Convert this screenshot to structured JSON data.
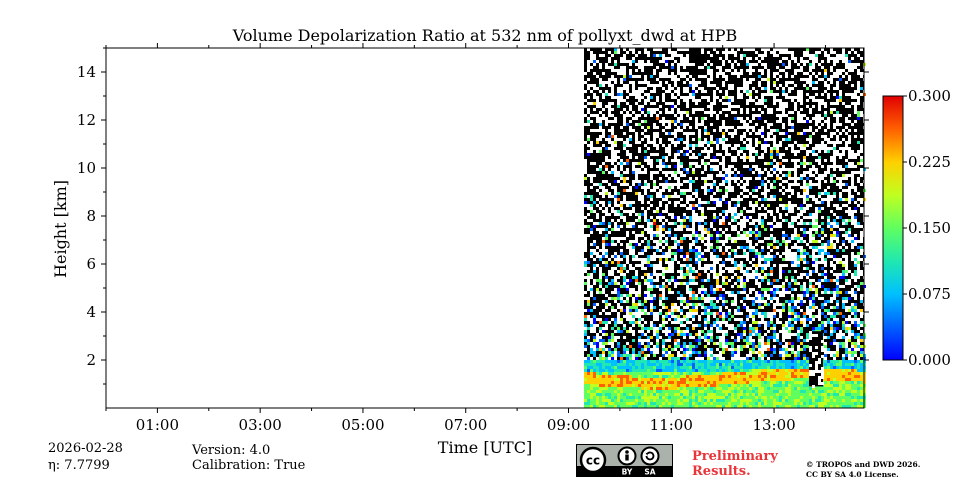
{
  "chart_data": {
    "type": "heatmap",
    "title": "Volume Depolarization Ratio at 532 nm of pollyxt_dwd at HPB",
    "xlabel": "Time [UTC]",
    "ylabel": "Height [km]",
    "x_ticks": [
      "01:00",
      "03:00",
      "05:00",
      "07:00",
      "09:00",
      "11:00",
      "13:00"
    ],
    "x_tick_hours": [
      1,
      3,
      5,
      7,
      9,
      11,
      13
    ],
    "xlim_hours": [
      0,
      14.75
    ],
    "y_ticks": [
      "2",
      "4",
      "6",
      "8",
      "10",
      "12",
      "14"
    ],
    "y_tick_values": [
      2,
      4,
      6,
      8,
      10,
      12,
      14
    ],
    "ylim_km": [
      0,
      15
    ],
    "data_start_hour": 9.3,
    "colorbar": {
      "ticks": [
        "0.000",
        "0.075",
        "0.150",
        "0.225",
        "0.300"
      ],
      "tick_values": [
        0,
        0.075,
        0.15,
        0.225,
        0.3
      ],
      "range": [
        0,
        0.3
      ],
      "colormap": "jet"
    },
    "layers": [
      {
        "name": "noise",
        "height_range_km": [
          2,
          15
        ],
        "value_range": [
          0,
          0.3
        ]
      },
      {
        "name": "mixed-layer aerosol",
        "height_range_km": [
          0,
          2
        ],
        "value_range": [
          0.1,
          0.25
        ]
      }
    ]
  },
  "footer": {
    "date": "2026-02-28",
    "eta": "η: 7.7799",
    "version": "Version: 4.0",
    "calibration": "Calibration: True",
    "preliminary_line1": "Preliminary",
    "preliminary_line2": "Results.",
    "copyright_line1": "© TROPOS and DWD 2026.",
    "copyright_line2": "CC BY SA 4.0 License."
  },
  "license_badge": {
    "label_cc": "cc",
    "label_by": "BY",
    "label_sa": "SA"
  }
}
